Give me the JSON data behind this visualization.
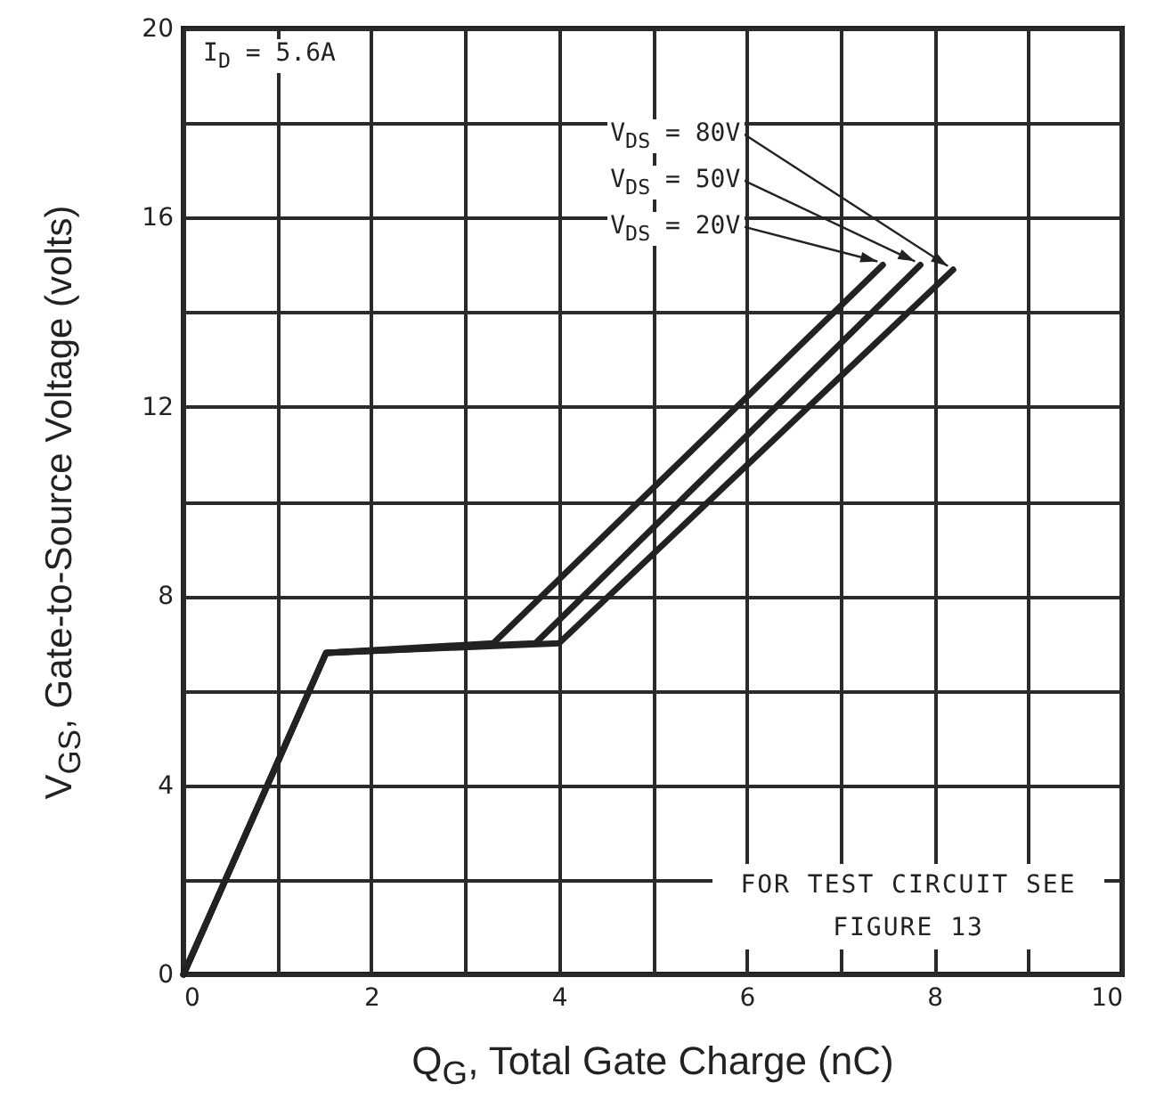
{
  "chart_data": {
    "type": "line",
    "xlabel": "Q$_{G}$, Total Gate Charge (nC)",
    "ylabel": "V$_{GS}$, Gate-to-Source Voltage (volts)",
    "xlim": [
      0,
      10
    ],
    "ylim": [
      0,
      20
    ],
    "xticks": [
      0,
      {
        "value": 1,
        "label": null
      },
      2,
      {
        "value": 3,
        "label": null
      },
      4,
      {
        "value": 5,
        "label": null
      },
      6,
      {
        "value": 7,
        "label": null
      },
      8,
      {
        "value": 9,
        "label": null
      },
      10
    ],
    "yticks": [
      0,
      {
        "value": 2,
        "label": null
      },
      4,
      {
        "value": 6,
        "label": null
      },
      8,
      {
        "value": 10,
        "label": null
      },
      12,
      {
        "value": 14,
        "label": null
      },
      16,
      {
        "value": 18,
        "label": null
      },
      20
    ],
    "grid": true,
    "line_style": "solid",
    "series": [
      {
        "name": "V$_{DS}$ =  80V",
        "color": "#222222",
        "x": [
          0,
          1.52,
          4.0,
          8.2
        ],
        "values": [
          0,
          6.8,
          7.0,
          14.9
        ]
      },
      {
        "name": "V$_{DS}$ =  50V",
        "color": "#222222",
        "x": [
          0,
          1.52,
          3.75,
          7.85
        ],
        "values": [
          0,
          6.8,
          7.0,
          15.0
        ]
      },
      {
        "name": "V$_{DS}$ =  20V",
        "color": "#222222",
        "x": [
          0,
          1.52,
          3.3,
          7.45
        ],
        "values": [
          0,
          6.8,
          7.0,
          15.0
        ]
      }
    ],
    "annotations": [
      "I$_{D}$ = 5.6A",
      "FOR TEST CIRCUIT SEE FIGURE 13"
    ]
  }
}
